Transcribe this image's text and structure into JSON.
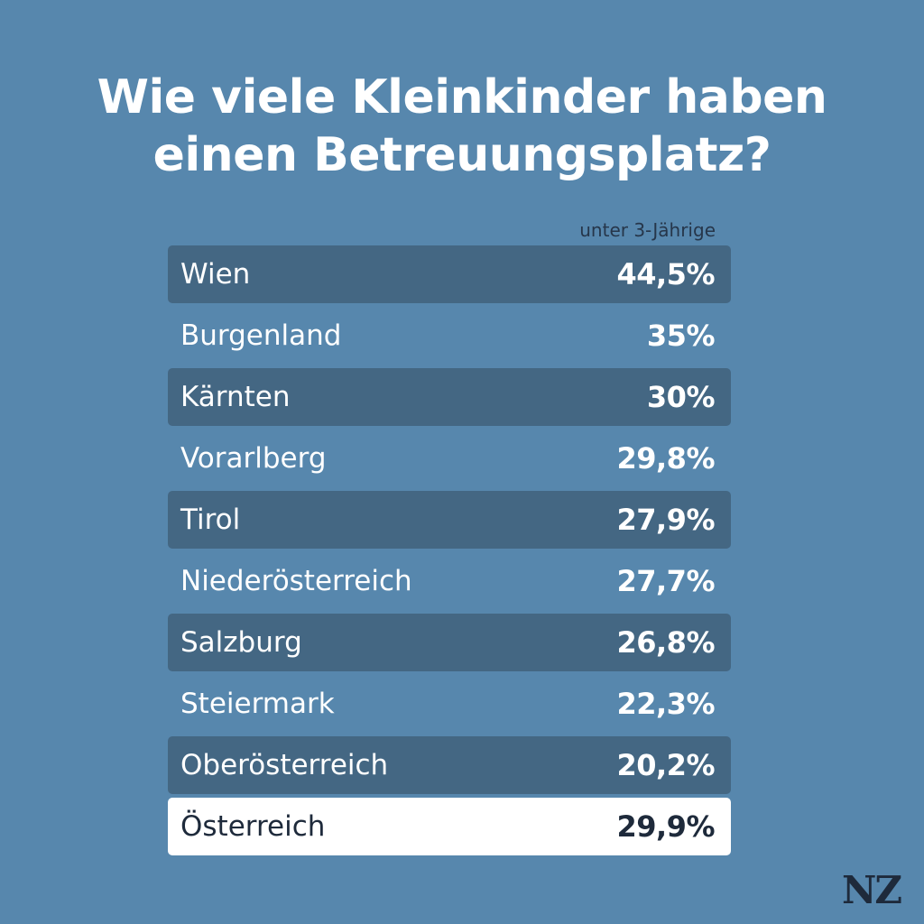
{
  "title_line1": "Wie viele Kleinkinder haben",
  "title_line2": "einen Betreuungsplatz?",
  "column_header": "unter 3-Jährige",
  "logo": "NZ",
  "colors": {
    "background": "#5787ad",
    "row_shade": "#446783",
    "total_row": "#ffffff",
    "dark_text": "#1e2a3b"
  },
  "chart_data": {
    "type": "table",
    "title": "Wie viele Kleinkinder haben einen Betreuungsplatz?",
    "columns": [
      "",
      "unter 3-Jährige"
    ],
    "rows": [
      {
        "label": "Wien",
        "value_text": "44,5%",
        "value": 44.5
      },
      {
        "label": "Burgenland",
        "value_text": "35%",
        "value": 35
      },
      {
        "label": "Kärnten",
        "value_text": "30%",
        "value": 30
      },
      {
        "label": "Vorarlberg",
        "value_text": "29,8%",
        "value": 29.8
      },
      {
        "label": "Tirol",
        "value_text": "27,9%",
        "value": 27.9
      },
      {
        "label": "Niederösterreich",
        "value_text": "27,7%",
        "value": 27.7
      },
      {
        "label": "Salzburg",
        "value_text": "26,8%",
        "value": 26.8
      },
      {
        "label": "Steiermark",
        "value_text": "22,3%",
        "value": 22.3
      },
      {
        "label": "Oberösterreich",
        "value_text": "20,2%",
        "value": 20.2
      }
    ],
    "total": {
      "label": "Österreich",
      "value_text": "29,9%",
      "value": 29.9
    }
  }
}
